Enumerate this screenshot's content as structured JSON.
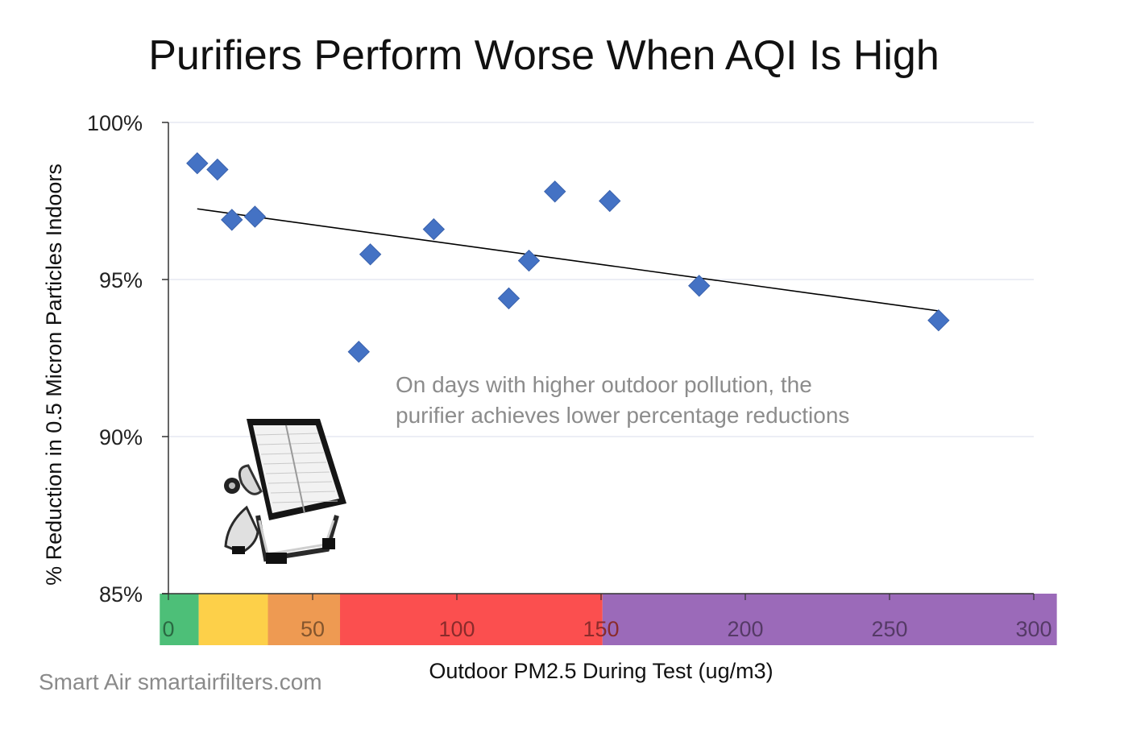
{
  "chart_data": {
    "type": "scatter",
    "title": "Purifiers Perform Worse When AQI Is High",
    "xlabel": "Outdoor PM2.5 During Test (ug/m3)",
    "ylabel": "% Reduction in 0.5 Micron Particles Indoors",
    "xlim": [
      0,
      300
    ],
    "ylim": [
      85,
      100
    ],
    "x_ticks": [
      "0",
      "50",
      "100",
      "150",
      "200",
      "250",
      "300"
    ],
    "y_ticks": [
      "100%",
      "95%",
      "90%",
      "85%"
    ],
    "grid": "horizontal",
    "points": [
      {
        "x": 10,
        "y": 98.7
      },
      {
        "x": 17,
        "y": 98.5
      },
      {
        "x": 22,
        "y": 96.9
      },
      {
        "x": 30,
        "y": 97.0
      },
      {
        "x": 66,
        "y": 92.7
      },
      {
        "x": 70,
        "y": 95.8
      },
      {
        "x": 92,
        "y": 96.6
      },
      {
        "x": 118,
        "y": 94.4
      },
      {
        "x": 125,
        "y": 95.6
      },
      {
        "x": 134,
        "y": 97.8
      },
      {
        "x": 153,
        "y": 97.5
      },
      {
        "x": 184,
        "y": 94.8
      },
      {
        "x": 267,
        "y": 93.7
      }
    ],
    "trendline": {
      "x": [
        10,
        267
      ],
      "y": [
        97.25,
        94.0
      ]
    },
    "aqi_bands": [
      {
        "from": -3,
        "to": 10.5,
        "color": "#4dbf78"
      },
      {
        "from": 10.5,
        "to": 34.5,
        "color": "#fdd049"
      },
      {
        "from": 34.5,
        "to": 59.5,
        "color": "#ee9a52"
      },
      {
        "from": 59.5,
        "to": 150.5,
        "color": "#fb4f4f"
      },
      {
        "from": 150.5,
        "to": 308,
        "color": "#9b6ab9"
      }
    ],
    "annotation": [
      "On days with higher outdoor pollution, the",
      "purifier achieves lower percentage reductions"
    ],
    "marker_color": "#4472c4",
    "grid_color": "#e6e9f2",
    "trend_color": "#000000"
  },
  "credit": "Smart Air smartairfilters.com",
  "illustration": {
    "name": "air-purifier-icon"
  }
}
